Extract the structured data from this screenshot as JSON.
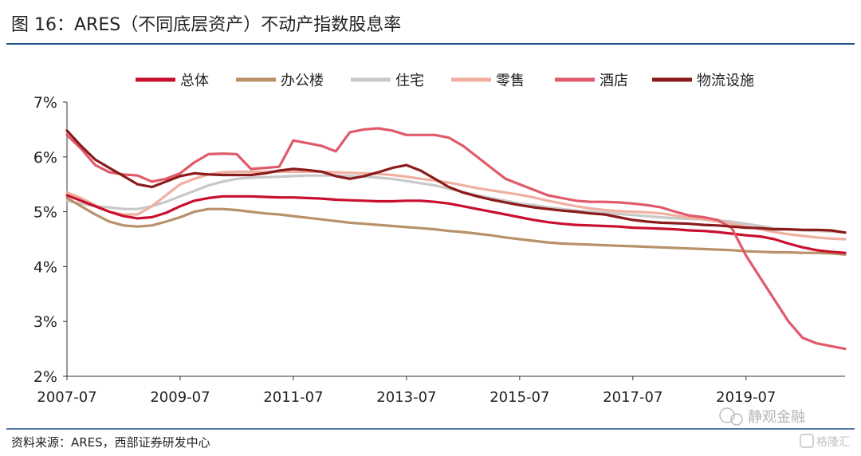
{
  "header": {
    "title": "图 16：ARES（不同底层资产）不动产指数股息率"
  },
  "footer": {
    "source": "资料来源：ARES，西部证券研发中心"
  },
  "watermark": {
    "text1": "静观金融",
    "text2": "格隆汇"
  },
  "chart_data": {
    "type": "line",
    "x_tick_labels": [
      "2007-07",
      "2009-07",
      "2011-07",
      "2013-07",
      "2015-07",
      "2017-07",
      "2019-07"
    ],
    "x": [
      2007.5,
      2007.75,
      2008.0,
      2008.25,
      2008.5,
      2008.75,
      2009.0,
      2009.25,
      2009.5,
      2009.75,
      2010.0,
      2010.25,
      2010.5,
      2010.75,
      2011.0,
      2011.25,
      2011.5,
      2011.75,
      2012.0,
      2012.25,
      2012.5,
      2012.75,
      2013.0,
      2013.25,
      2013.5,
      2013.75,
      2014.0,
      2014.25,
      2014.5,
      2014.75,
      2015.0,
      2015.25,
      2015.5,
      2015.75,
      2016.0,
      2016.25,
      2016.5,
      2016.75,
      2017.0,
      2017.25,
      2017.5,
      2017.75,
      2018.0,
      2018.25,
      2018.5,
      2018.75,
      2019.0,
      2019.25,
      2019.5,
      2019.75,
      2020.0,
      2020.25,
      2020.5,
      2020.75,
      2021.0,
      2021.25
    ],
    "ylim": [
      2,
      7
    ],
    "y_ticks": [
      2,
      3,
      4,
      5,
      6,
      7
    ],
    "y_tick_labels": [
      "2%",
      "3%",
      "4%",
      "5%",
      "6%",
      "7%"
    ],
    "legend_position": "top",
    "grid": false,
    "series": [
      {
        "name": "总体",
        "color": "#c8102e",
        "values": [
          5.3,
          5.2,
          5.1,
          5.0,
          4.92,
          4.88,
          4.9,
          4.98,
          5.1,
          5.2,
          5.25,
          5.28,
          5.28,
          5.28,
          5.27,
          5.26,
          5.26,
          5.25,
          5.24,
          5.22,
          5.21,
          5.2,
          5.19,
          5.19,
          5.2,
          5.2,
          5.18,
          5.15,
          5.1,
          5.05,
          5.0,
          4.95,
          4.9,
          4.85,
          4.81,
          4.78,
          4.76,
          4.75,
          4.74,
          4.73,
          4.71,
          4.7,
          4.69,
          4.68,
          4.66,
          4.65,
          4.63,
          4.6,
          4.57,
          4.55,
          4.5,
          4.42,
          4.35,
          4.3,
          4.27,
          4.25
        ]
      },
      {
        "name": "办公楼",
        "color": "#b8916a",
        "values": [
          5.25,
          5.1,
          4.95,
          4.82,
          4.75,
          4.73,
          4.75,
          4.82,
          4.9,
          5.0,
          5.05,
          5.05,
          5.03,
          5.0,
          4.97,
          4.95,
          4.92,
          4.89,
          4.86,
          4.83,
          4.8,
          4.78,
          4.76,
          4.74,
          4.72,
          4.7,
          4.68,
          4.65,
          4.63,
          4.6,
          4.57,
          4.53,
          4.5,
          4.47,
          4.44,
          4.42,
          4.41,
          4.4,
          4.39,
          4.38,
          4.37,
          4.36,
          4.35,
          4.34,
          4.33,
          4.32,
          4.31,
          4.3,
          4.28,
          4.27,
          4.26,
          4.26,
          4.25,
          4.25,
          4.24,
          4.22
        ]
      },
      {
        "name": "住宅",
        "color": "#c8c8c8",
        "values": [
          5.2,
          5.15,
          5.1,
          5.08,
          5.05,
          5.05,
          5.1,
          5.18,
          5.28,
          5.38,
          5.48,
          5.55,
          5.6,
          5.62,
          5.63,
          5.64,
          5.65,
          5.66,
          5.66,
          5.66,
          5.65,
          5.64,
          5.62,
          5.6,
          5.56,
          5.52,
          5.48,
          5.42,
          5.36,
          5.3,
          5.25,
          5.2,
          5.15,
          5.12,
          5.08,
          5.05,
          5.02,
          5.0,
          4.98,
          4.96,
          4.94,
          4.92,
          4.9,
          4.88,
          4.87,
          4.86,
          4.84,
          4.82,
          4.78,
          4.74,
          4.7,
          4.68,
          4.66,
          4.65,
          4.64,
          4.62
        ]
      },
      {
        "name": "零售",
        "color": "#f0b0a0",
        "values": [
          5.35,
          5.25,
          5.12,
          5.0,
          4.95,
          4.95,
          5.1,
          5.3,
          5.5,
          5.6,
          5.68,
          5.72,
          5.73,
          5.73,
          5.73,
          5.73,
          5.73,
          5.73,
          5.73,
          5.72,
          5.71,
          5.7,
          5.69,
          5.67,
          5.64,
          5.6,
          5.57,
          5.53,
          5.48,
          5.43,
          5.39,
          5.35,
          5.31,
          5.26,
          5.2,
          5.15,
          5.1,
          5.06,
          5.03,
          5.01,
          5.0,
          4.99,
          4.97,
          4.93,
          4.89,
          4.86,
          4.82,
          4.78,
          4.73,
          4.68,
          4.63,
          4.59,
          4.56,
          4.53,
          4.51,
          4.5
        ]
      },
      {
        "name": "酒店",
        "color": "#e05a6a",
        "values": [
          6.4,
          6.15,
          5.85,
          5.72,
          5.68,
          5.66,
          5.55,
          5.6,
          5.7,
          5.9,
          6.05,
          6.06,
          6.05,
          5.78,
          5.8,
          5.82,
          6.3,
          6.25,
          6.2,
          6.1,
          6.45,
          6.5,
          6.52,
          6.48,
          6.4,
          6.4,
          6.4,
          6.35,
          6.2,
          6.0,
          5.8,
          5.6,
          5.5,
          5.4,
          5.3,
          5.25,
          5.2,
          5.18,
          5.18,
          5.17,
          5.15,
          5.12,
          5.08,
          5.0,
          4.93,
          4.9,
          4.85,
          4.7,
          4.2,
          3.8,
          3.4,
          3.0,
          2.7,
          2.6,
          2.55,
          2.5
        ]
      },
      {
        "name": "物流设施",
        "color": "#8b1a1a",
        "values": [
          6.48,
          6.2,
          5.95,
          5.8,
          5.65,
          5.5,
          5.45,
          5.55,
          5.65,
          5.7,
          5.68,
          5.67,
          5.67,
          5.67,
          5.7,
          5.75,
          5.78,
          5.76,
          5.73,
          5.65,
          5.6,
          5.65,
          5.72,
          5.8,
          5.85,
          5.75,
          5.6,
          5.45,
          5.35,
          5.28,
          5.22,
          5.17,
          5.12,
          5.08,
          5.05,
          5.02,
          5.0,
          4.97,
          4.95,
          4.9,
          4.85,
          4.82,
          4.8,
          4.79,
          4.78,
          4.76,
          4.75,
          4.73,
          4.71,
          4.7,
          4.68,
          4.68,
          4.67,
          4.67,
          4.66,
          4.62
        ]
      }
    ]
  }
}
